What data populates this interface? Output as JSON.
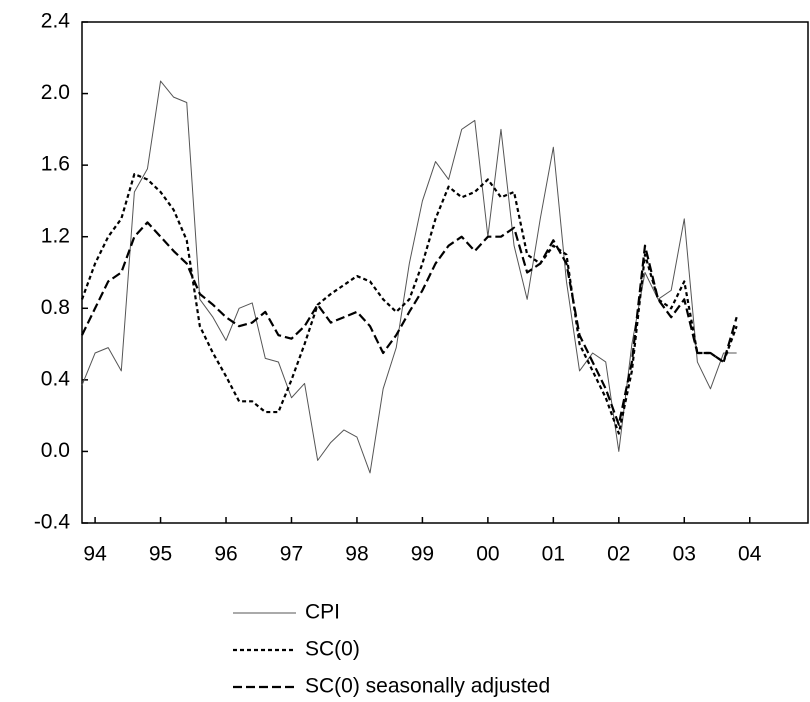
{
  "chart_data": {
    "type": "line",
    "x": [
      1993.8,
      1994,
      1994.2,
      1994.4,
      1994.6,
      1994.8,
      1995,
      1995.2,
      1995.4,
      1995.6,
      1995.8,
      1996,
      1996.2,
      1996.4,
      1996.6,
      1996.8,
      1997,
      1997.2,
      1997.4,
      1997.6,
      1997.8,
      1998,
      1998.2,
      1998.4,
      1998.6,
      1998.8,
      1999,
      1999.2,
      1999.4,
      1999.6,
      1999.8,
      2000,
      2000.2,
      2000.4,
      2000.6,
      2000.8,
      2001,
      2001.2,
      2001.4,
      2001.6,
      2001.8,
      2002,
      2002.2,
      2002.4,
      2002.6,
      2002.8,
      2003,
      2003.2,
      2003.4,
      2003.6,
      2003.8
    ],
    "series": [
      {
        "name": "CPI",
        "color": "#555555",
        "style": "solid",
        "values": [
          0.37,
          0.55,
          0.58,
          0.45,
          1.45,
          1.58,
          2.07,
          1.98,
          1.95,
          0.85,
          0.75,
          0.62,
          0.8,
          0.83,
          0.52,
          0.5,
          0.3,
          0.38,
          -0.05,
          0.05,
          0.12,
          0.08,
          -0.12,
          0.35,
          0.58,
          1.05,
          1.4,
          1.62,
          1.52,
          1.8,
          1.85,
          1.2,
          1.8,
          1.15,
          0.85,
          1.3,
          1.7,
          0.95,
          0.45,
          0.55,
          0.5,
          0.0,
          0.6,
          1.0,
          0.85,
          0.9,
          1.3,
          0.5,
          0.35,
          0.55,
          0.55
        ]
      },
      {
        "name": "SC(0)",
        "color": "#000000",
        "style": "short-dash",
        "values": [
          0.85,
          1.05,
          1.2,
          1.3,
          1.55,
          1.52,
          1.45,
          1.35,
          1.18,
          0.7,
          0.55,
          0.42,
          0.28,
          0.28,
          0.22,
          0.22,
          0.4,
          0.6,
          0.82,
          0.88,
          0.93,
          0.98,
          0.95,
          0.85,
          0.78,
          0.85,
          1.05,
          1.3,
          1.48,
          1.42,
          1.45,
          1.52,
          1.42,
          1.45,
          1.1,
          1.05,
          1.15,
          1.1,
          0.6,
          0.45,
          0.3,
          0.1,
          0.45,
          1.1,
          0.85,
          0.8,
          0.95,
          0.55,
          0.55,
          0.5,
          0.7
        ]
      },
      {
        "name": "SC(0) seasonally adjusted",
        "color": "#000000",
        "style": "long-dash",
        "values": [
          0.65,
          0.8,
          0.95,
          1.0,
          1.2,
          1.28,
          1.2,
          1.12,
          1.05,
          0.88,
          0.82,
          0.75,
          0.7,
          0.72,
          0.78,
          0.65,
          0.63,
          0.7,
          0.82,
          0.72,
          0.75,
          0.78,
          0.7,
          0.55,
          0.65,
          0.78,
          0.9,
          1.05,
          1.15,
          1.2,
          1.12,
          1.2,
          1.2,
          1.25,
          1.0,
          1.05,
          1.18,
          1.05,
          0.65,
          0.5,
          0.35,
          0.15,
          0.5,
          1.15,
          0.85,
          0.75,
          0.85,
          0.55,
          0.55,
          0.5,
          0.75
        ]
      }
    ],
    "xlim": [
      1993.8,
      2004.89
    ],
    "xticks": [
      {
        "value": 1994,
        "label": "94"
      },
      {
        "value": 1995,
        "label": "95"
      },
      {
        "value": 1996,
        "label": "96"
      },
      {
        "value": 1997,
        "label": "97"
      },
      {
        "value": 1998,
        "label": "98"
      },
      {
        "value": 1999,
        "label": "99"
      },
      {
        "value": 2000,
        "label": "00"
      },
      {
        "value": 2001,
        "label": "01"
      },
      {
        "value": 2002,
        "label": "02"
      },
      {
        "value": 2003,
        "label": "03"
      },
      {
        "value": 2004,
        "label": "04"
      }
    ],
    "ylim": [
      -0.4,
      2.4
    ],
    "yticks": [
      -0.4,
      {
        "value": 0,
        "label": "0.0"
      },
      0.4,
      0.8,
      1.2,
      1.6,
      {
        "value": 2,
        "label": "2.0"
      },
      2.4
    ],
    "grid": false,
    "legend": "bottom"
  }
}
